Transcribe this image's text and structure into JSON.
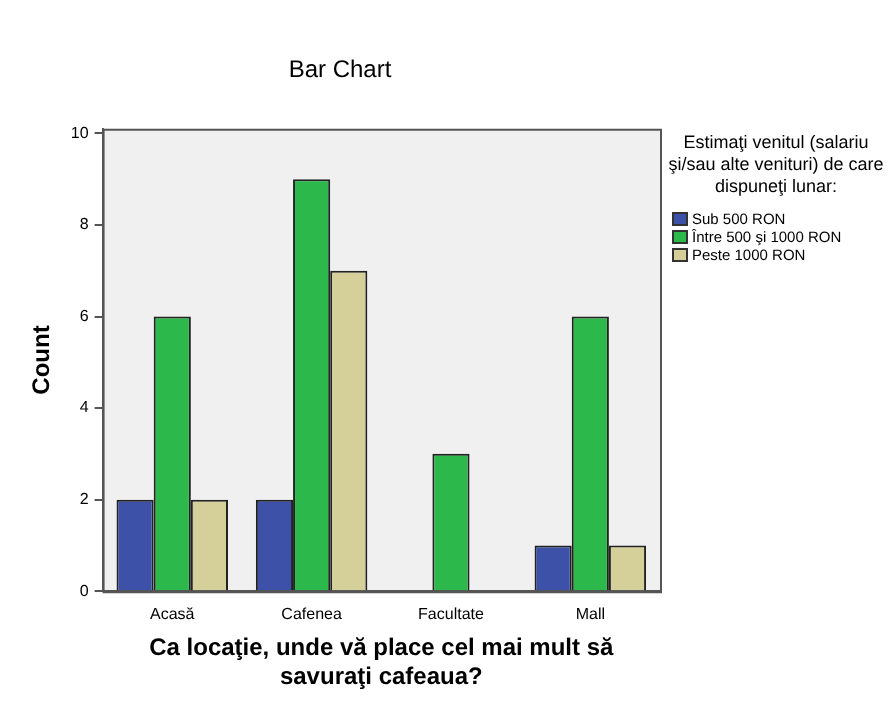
{
  "chart_data": {
    "type": "bar",
    "title": "Bar Chart",
    "xlabel": "Ca locaţie, unde vă place cel mai mult să savuraţi cafeaua?",
    "ylabel": "Count",
    "legend_title": "Estimaţi venitul (salariu şi/sau alte venituri) de care dispuneţi lunar:",
    "categories": [
      "Acasă",
      "Cafenea",
      "Facultate",
      "Mall"
    ],
    "series": [
      {
        "name": "Sub 500 RON",
        "color": "#3d51a8",
        "values": [
          2,
          2,
          null,
          1
        ]
      },
      {
        "name": "Între 500 şi 1000 RON",
        "color": "#2db84c",
        "values": [
          6,
          9,
          3,
          6
        ]
      },
      {
        "name": "Peste 1000 RON",
        "color": "#d5cf9a",
        "values": [
          2,
          7,
          null,
          1
        ]
      }
    ],
    "ylim": [
      0,
      10.1
    ],
    "yticks": [
      0,
      2,
      4,
      6,
      8,
      10
    ],
    "grid": false,
    "legend": "right"
  }
}
